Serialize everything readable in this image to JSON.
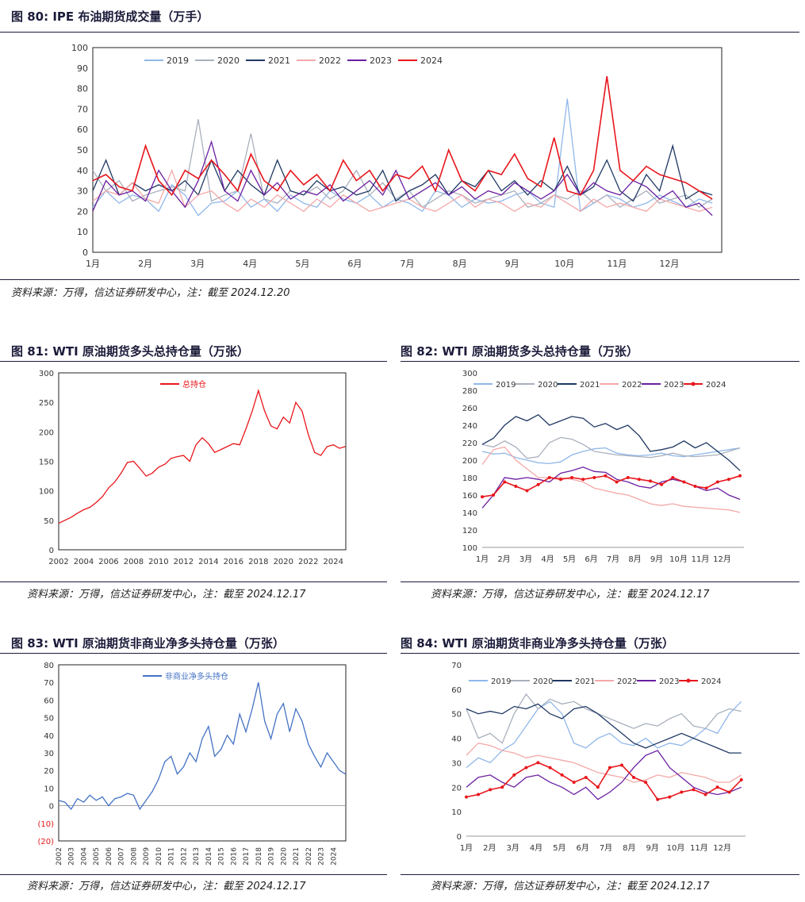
{
  "colors": {
    "y2019": "#8fb8ea",
    "y2020": "#a9b0bd",
    "y2021": "#1f3864",
    "y2022": "#f4a8a8",
    "y2023": "#6a1ea0",
    "y2024": "#e8161b",
    "total": "#e8161b",
    "net": "#4472c4"
  },
  "titles": {
    "t80": "图 80:  IPE 布油期货成交量（万手）",
    "t81": "图 81:  WTI 原油期货多头总持仓量（万张）",
    "t82": "图 82:  WTI 原油期货多头总持仓量（万张）",
    "t83": "图 83:  WTI 原油期货非商业净多头持仓量（万张）",
    "t84": "图 84:  WTI 原油期货非商业净多头持仓量（万张）"
  },
  "sources": {
    "s80": "资料来源：万得，信达证券研发中心，注：截至 2024.12.20",
    "s81": "资料来源：万得，信达证券研发中心，注：截至 2024.12.17",
    "s82": "资料来源：万得，信达证券研发中心，注：截至 2024.12.17",
    "s83": "资料来源：万得，信达证券研发中心，注：截至 2024.12.17",
    "s84": "资料来源：万得，信达证券研发中心，注：截至 2024.12.17"
  },
  "chart_data": [
    {
      "id": "c80",
      "type": "line",
      "x_labels": [
        "1月",
        "2月",
        "3月",
        "4月",
        "5月",
        "6月",
        "7月",
        "8月",
        "9月",
        "10月",
        "11月",
        "12月"
      ],
      "ylim": [
        0,
        100
      ],
      "yticks": [
        0,
        10,
        20,
        30,
        40,
        50,
        60,
        70,
        80,
        90,
        100
      ],
      "legend_position": "top-left",
      "series": [
        {
          "name": "2019",
          "color_key": "y2019",
          "values": [
            22,
            30,
            24,
            28,
            26,
            20,
            33,
            28,
            18,
            24,
            25,
            30,
            22,
            26,
            20,
            28,
            24,
            22,
            30,
            26,
            24,
            28,
            22,
            26,
            24,
            20,
            30,
            28,
            22,
            26,
            24,
            25,
            28,
            30,
            24,
            22,
            75,
            20,
            24,
            28,
            26,
            22,
            24,
            28,
            25,
            22,
            26,
            24
          ]
        },
        {
          "name": "2020",
          "color_key": "y2020",
          "values": [
            40,
            30,
            35,
            25,
            28,
            30,
            32,
            30,
            65,
            25,
            28,
            30,
            58,
            26,
            24,
            30,
            28,
            32,
            26,
            30,
            40,
            28,
            34,
            26,
            30,
            22,
            26,
            30,
            28,
            24,
            26,
            28,
            30,
            22,
            24,
            28,
            26,
            30,
            24,
            28,
            22,
            26,
            30,
            24,
            26,
            28,
            22,
            26
          ]
        },
        {
          "name": "2021",
          "color_key": "y2021",
          "values": [
            30,
            45,
            28,
            34,
            30,
            33,
            30,
            35,
            28,
            45,
            30,
            40,
            33,
            28,
            45,
            30,
            28,
            35,
            30,
            32,
            28,
            30,
            40,
            25,
            30,
            33,
            38,
            28,
            35,
            32,
            40,
            30,
            35,
            28,
            35,
            30,
            42,
            28,
            32,
            45,
            30,
            25,
            38,
            30,
            52,
            26,
            30,
            28
          ]
        },
        {
          "name": "2022",
          "color_key": "y2022",
          "values": [
            25,
            30,
            28,
            34,
            26,
            24,
            40,
            22,
            28,
            30,
            24,
            20,
            26,
            22,
            28,
            24,
            20,
            26,
            22,
            28,
            24,
            20,
            22,
            24,
            26,
            22,
            20,
            24,
            28,
            22,
            26,
            24,
            20,
            24,
            22,
            28,
            24,
            20,
            26,
            22,
            24,
            22,
            20,
            26,
            24,
            22,
            20,
            22
          ]
        },
        {
          "name": "2023",
          "color_key": "y2023",
          "values": [
            20,
            35,
            28,
            30,
            25,
            40,
            30,
            22,
            35,
            54,
            30,
            25,
            40,
            28,
            34,
            26,
            30,
            28,
            33,
            25,
            30,
            35,
            28,
            40,
            26,
            30,
            34,
            28,
            32,
            26,
            30,
            28,
            34,
            30,
            26,
            30,
            38,
            28,
            34,
            30,
            28,
            35,
            32,
            26,
            30,
            22,
            24,
            18
          ]
        },
        {
          "name": "2024",
          "color_key": "y2024",
          "values": [
            35,
            38,
            32,
            30,
            52,
            35,
            28,
            40,
            36,
            45,
            38,
            30,
            48,
            35,
            30,
            40,
            33,
            38,
            30,
            45,
            35,
            40,
            30,
            38,
            36,
            42,
            30,
            50,
            35,
            30,
            40,
            38,
            48,
            36,
            32,
            56,
            30,
            28,
            40,
            86,
            40,
            35,
            42,
            38,
            36,
            34,
            30,
            26
          ]
        }
      ]
    },
    {
      "id": "c81",
      "type": "line",
      "x_labels": [
        "2002",
        "2004",
        "2006",
        "2008",
        "2010",
        "2012",
        "2014",
        "2016",
        "2018",
        "2020",
        "2022",
        "2024"
      ],
      "ylim": [
        0,
        300
      ],
      "yticks": [
        0,
        50,
        100,
        150,
        200,
        250,
        300
      ],
      "legend_position": "top-center",
      "series": [
        {
          "name": "总持仓",
          "color_key": "total",
          "x": [
            2002,
            2002.5,
            2003,
            2003.5,
            2004,
            2004.5,
            2005,
            2005.5,
            2006,
            2006.5,
            2007,
            2007.5,
            2008,
            2008.5,
            2009,
            2009.5,
            2010,
            2010.5,
            2011,
            2011.5,
            2012,
            2012.5,
            2013,
            2013.5,
            2014,
            2014.5,
            2015,
            2015.5,
            2016,
            2016.5,
            2017,
            2017.5,
            2018,
            2018.5,
            2019,
            2019.5,
            2020,
            2020.5,
            2021,
            2021.5,
            2022,
            2022.5,
            2023,
            2023.5,
            2024,
            2024.5,
            2024.96
          ],
          "values": [
            45,
            50,
            55,
            62,
            68,
            72,
            80,
            90,
            105,
            115,
            130,
            148,
            150,
            138,
            125,
            130,
            140,
            145,
            155,
            158,
            160,
            150,
            178,
            190,
            180,
            165,
            170,
            175,
            180,
            178,
            205,
            235,
            270,
            235,
            210,
            205,
            225,
            215,
            250,
            235,
            195,
            165,
            160,
            175,
            178,
            172,
            175
          ]
        }
      ]
    },
    {
      "id": "c82",
      "type": "line",
      "x_labels": [
        "1月",
        "2月",
        "3月",
        "4月",
        "5月",
        "6月",
        "7月",
        "8月",
        "9月",
        "10月",
        "11月",
        "12月"
      ],
      "ylim": [
        100,
        300
      ],
      "yticks": [
        100,
        120,
        140,
        160,
        180,
        200,
        220,
        240,
        260,
        280,
        300
      ],
      "legend_position": "top",
      "series": [
        {
          "name": "2019",
          "color_key": "y2019",
          "values": [
            210,
            207,
            208,
            203,
            200,
            197,
            196,
            198,
            206,
            210,
            213,
            214,
            208,
            206,
            205,
            206,
            208,
            205,
            204,
            206,
            208,
            210,
            212,
            214
          ]
        },
        {
          "name": "2020",
          "color_key": "y2020",
          "values": [
            218,
            215,
            222,
            215,
            202,
            204,
            220,
            226,
            224,
            218,
            210,
            208,
            206,
            205,
            204,
            203,
            205,
            208,
            205,
            204,
            205,
            206,
            210,
            214
          ]
        },
        {
          "name": "2021",
          "color_key": "y2021",
          "values": [
            218,
            225,
            240,
            250,
            245,
            252,
            240,
            245,
            250,
            248,
            238,
            242,
            235,
            240,
            228,
            210,
            212,
            215,
            222,
            214,
            220,
            210,
            200,
            188
          ]
        },
        {
          "name": "2022",
          "color_key": "y2022",
          "values": [
            195,
            212,
            215,
            200,
            190,
            180,
            180,
            180,
            178,
            175,
            168,
            165,
            162,
            160,
            155,
            150,
            148,
            150,
            147,
            146,
            145,
            144,
            143,
            140
          ]
        },
        {
          "name": "2023",
          "color_key": "y2023",
          "values": [
            145,
            160,
            180,
            178,
            180,
            178,
            175,
            185,
            188,
            192,
            187,
            186,
            178,
            175,
            170,
            168,
            175,
            178,
            175,
            170,
            165,
            168,
            160,
            155
          ]
        },
        {
          "name": "2024",
          "color_key": "y2024",
          "values": [
            158,
            160,
            175,
            170,
            165,
            172,
            180,
            178,
            180,
            178,
            180,
            182,
            175,
            180,
            178,
            176,
            172,
            180,
            175,
            170,
            168,
            175,
            178,
            182
          ]
        }
      ]
    },
    {
      "id": "c83",
      "type": "line",
      "x_labels": [
        "2002",
        "2003",
        "2004",
        "2005",
        "2006",
        "2007",
        "2008",
        "2009",
        "2010",
        "2011",
        "2012",
        "2013",
        "2014",
        "2015",
        "2016",
        "2017",
        "2018",
        "2019",
        "2020",
        "2021",
        "2022",
        "2023",
        "2024"
      ],
      "ylim": [
        -20,
        80
      ],
      "yticks": [
        -20,
        -10,
        0,
        10,
        20,
        30,
        40,
        50,
        60,
        70,
        80
      ],
      "ytick_labels": [
        "(20)",
        "(10)",
        "0",
        "10",
        "20",
        "30",
        "40",
        "50",
        "60",
        "70",
        "80"
      ],
      "negative_tick_color": "#e8161b",
      "legend_position": "top-center",
      "series": [
        {
          "name": "非商业净多头持仓",
          "color_key": "net",
          "x": [
            2002,
            2002.5,
            2003,
            2003.5,
            2004,
            2004.5,
            2005,
            2005.5,
            2006,
            2006.5,
            2007,
            2007.5,
            2008,
            2008.5,
            2009,
            2009.5,
            2010,
            2010.5,
            2011,
            2011.5,
            2012,
            2012.5,
            2013,
            2013.5,
            2014,
            2014.5,
            2015,
            2015.5,
            2016,
            2016.5,
            2017,
            2017.5,
            2018,
            2018.5,
            2019,
            2019.5,
            2020,
            2020.5,
            2021,
            2021.5,
            2022,
            2022.5,
            2023,
            2023.5,
            2024,
            2024.5,
            2024.96
          ],
          "values": [
            3,
            2,
            -2,
            4,
            2,
            6,
            3,
            5,
            0,
            4,
            5,
            7,
            6,
            -2,
            3,
            8,
            15,
            25,
            28,
            18,
            22,
            30,
            25,
            38,
            45,
            28,
            32,
            40,
            35,
            52,
            42,
            55,
            70,
            48,
            38,
            52,
            58,
            42,
            55,
            48,
            35,
            28,
            22,
            30,
            25,
            20,
            18
          ]
        }
      ]
    },
    {
      "id": "c84",
      "type": "line",
      "x_labels": [
        "1月",
        "2月",
        "3月",
        "4月",
        "5月",
        "6月",
        "7月",
        "8月",
        "9月",
        "10月",
        "11月",
        "12月"
      ],
      "ylim": [
        0,
        70
      ],
      "yticks": [
        0,
        10,
        20,
        30,
        40,
        50,
        60,
        70
      ],
      "legend_position": "top",
      "series": [
        {
          "name": "2019",
          "color_key": "y2019",
          "values": [
            28,
            32,
            30,
            35,
            38,
            45,
            52,
            55,
            50,
            38,
            36,
            40,
            42,
            38,
            37,
            40,
            36,
            38,
            37,
            40,
            44,
            42,
            50,
            55
          ]
        },
        {
          "name": "2020",
          "color_key": "y2020",
          "values": [
            52,
            40,
            42,
            38,
            50,
            58,
            52,
            56,
            54,
            55,
            52,
            50,
            48,
            46,
            44,
            46,
            45,
            48,
            50,
            45,
            44,
            50,
            52,
            51
          ]
        },
        {
          "name": "2021",
          "color_key": "y2021",
          "values": [
            52,
            50,
            51,
            50,
            53,
            52,
            54,
            50,
            48,
            52,
            53,
            50,
            46,
            42,
            38,
            36,
            38,
            40,
            42,
            40,
            38,
            36,
            34,
            34
          ]
        },
        {
          "name": "2022",
          "color_key": "y2022",
          "values": [
            33,
            38,
            37,
            35,
            34,
            32,
            33,
            32,
            31,
            30,
            28,
            26,
            25,
            24,
            22,
            23,
            25,
            24,
            26,
            25,
            24,
            22,
            22,
            25
          ]
        },
        {
          "name": "2023",
          "color_key": "y2023",
          "values": [
            20,
            24,
            25,
            22,
            20,
            24,
            25,
            22,
            20,
            17,
            20,
            15,
            18,
            22,
            28,
            33,
            35,
            28,
            24,
            20,
            18,
            17,
            18,
            20
          ]
        },
        {
          "name": "2024",
          "color_key": "y2024",
          "values": [
            16,
            17,
            19,
            20,
            25,
            28,
            30,
            28,
            25,
            22,
            24,
            20,
            28,
            29,
            24,
            22,
            15,
            16,
            18,
            19,
            17,
            20,
            18,
            23
          ]
        }
      ]
    }
  ]
}
